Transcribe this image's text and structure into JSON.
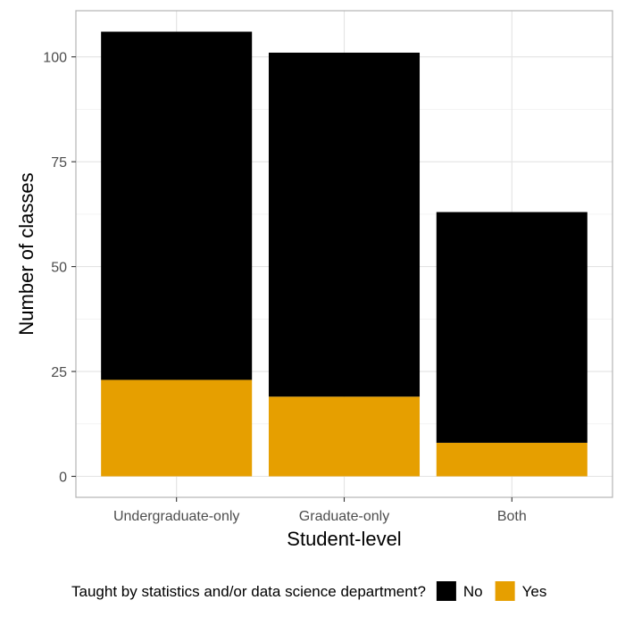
{
  "chart_data": {
    "type": "bar",
    "stacked": true,
    "categories": [
      "Undergraduate-only",
      "Graduate-only",
      "Both"
    ],
    "series": [
      {
        "name": "No",
        "values": [
          83,
          82,
          55
        ],
        "color": "#000000"
      },
      {
        "name": "Yes",
        "values": [
          23,
          19,
          8
        ],
        "color": "#E69F00"
      }
    ],
    "xlabel": "Student-level",
    "ylabel": "Number of classes",
    "ylim": [
      -5,
      111
    ],
    "yticks": [
      0,
      25,
      50,
      75,
      100
    ],
    "grid": true,
    "legend": {
      "title": "Taught by statistics and/or data science department?",
      "position": "bottom"
    }
  }
}
